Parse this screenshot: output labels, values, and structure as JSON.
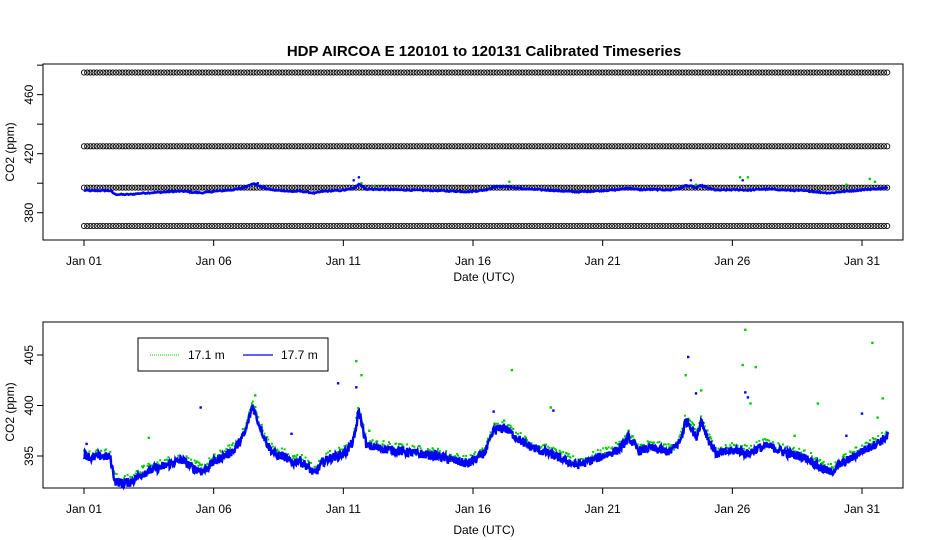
{
  "chart_data": [
    {
      "type": "scatter",
      "title": "HDP   AIRCOA  E   120101  to  120131   Calibrated Timeseries",
      "xlabel": "Date (UTC)",
      "ylabel": "CO2 (ppm)",
      "x_range_days": [
        1,
        32
      ],
      "ylim": [
        365,
        485
      ],
      "x_ticks": [
        {
          "day": 1,
          "label": "Jan 01"
        },
        {
          "day": 6,
          "label": "Jan 06"
        },
        {
          "day": 11,
          "label": "Jan 11"
        },
        {
          "day": 16,
          "label": "Jan 16"
        },
        {
          "day": 21,
          "label": "Jan 21"
        },
        {
          "day": 26,
          "label": "Jan 26"
        },
        {
          "day": 31,
          "label": "Jan 31"
        }
      ],
      "y_ticks": [
        380,
        420,
        460
      ],
      "y_ticks_unlabeled": [
        360,
        400,
        440,
        480
      ],
      "reference_levels": [
        371,
        397,
        425,
        475
      ],
      "series_colors": {
        "reference": "#000000",
        "low": "#00cc00",
        "high": "#0000ff"
      },
      "grid": false
    },
    {
      "type": "scatter",
      "title": "",
      "xlabel": "Date (UTC)",
      "ylabel": "CO2 (ppm)",
      "x_range_days": [
        1,
        32
      ],
      "ylim": [
        391,
        408
      ],
      "x_ticks": [
        {
          "day": 1,
          "label": "Jan 01"
        },
        {
          "day": 6,
          "label": "Jan 06"
        },
        {
          "day": 11,
          "label": "Jan 11"
        },
        {
          "day": 16,
          "label": "Jan 16"
        },
        {
          "day": 21,
          "label": "Jan 21"
        },
        {
          "day": 26,
          "label": "Jan 26"
        },
        {
          "day": 31,
          "label": "Jan 31"
        }
      ],
      "y_ticks": [
        395,
        400,
        405
      ],
      "legend_position": "top-left",
      "series": [
        {
          "name": "17.1 m",
          "color": "#00cc00"
        },
        {
          "name": "17.7 m",
          "color": "#0000ff"
        }
      ],
      "baseline": {
        "day": [
          1.0,
          1.3,
          1.6,
          2.0,
          2.2,
          2.5,
          2.8,
          3.2,
          3.6,
          4.0,
          4.4,
          4.8,
          5.2,
          5.6,
          6.0,
          6.4,
          6.8,
          7.2,
          7.5,
          7.7,
          7.9,
          8.1,
          8.4,
          8.7,
          9.0,
          9.3,
          9.6,
          9.9,
          10.2,
          10.5,
          10.8,
          11.1,
          11.4,
          11.6,
          11.9,
          12.3,
          12.8,
          13.4,
          14.0,
          14.6,
          15.2,
          15.8,
          16.2,
          16.5,
          16.8,
          17.2,
          17.6,
          18.0,
          18.5,
          19.0,
          19.5,
          20.0,
          20.4,
          20.8,
          21.2,
          21.6,
          22.0,
          22.4,
          22.8,
          23.2,
          23.6,
          24.0,
          24.2,
          24.4,
          24.6,
          24.8,
          25.1,
          25.4,
          25.8,
          26.2,
          26.6,
          27.0,
          27.4,
          27.8,
          28.2,
          28.6,
          29.0,
          29.4,
          29.8,
          30.2,
          30.6,
          31.0,
          31.4,
          31.8,
          32.0
        ],
        "co2": [
          395.2,
          394.8,
          395.0,
          394.9,
          392.5,
          392.3,
          392.4,
          393.2,
          393.6,
          393.9,
          394.3,
          394.6,
          393.8,
          393.5,
          394.4,
          395.0,
          395.6,
          397.2,
          400.0,
          398.5,
          397.2,
          396.0,
          395.1,
          395.0,
          394.3,
          394.6,
          394.0,
          393.2,
          394.4,
          394.8,
          395.0,
          395.4,
          396.5,
          399.5,
          396.0,
          395.8,
          395.6,
          395.4,
          395.2,
          395.0,
          394.6,
          394.2,
          394.8,
          395.5,
          397.5,
          397.8,
          397.0,
          396.2,
          395.6,
          395.2,
          394.6,
          394.1,
          394.4,
          394.8,
          395.2,
          395.6,
          396.8,
          395.5,
          395.8,
          395.6,
          395.4,
          396.5,
          398.5,
          398.0,
          396.8,
          398.5,
          396.5,
          395.2,
          395.4,
          395.6,
          395.2,
          395.8,
          396.0,
          395.6,
          395.2,
          395.0,
          394.6,
          393.8,
          393.4,
          394.2,
          394.8,
          395.5,
          396.0,
          396.6,
          397.0
        ]
      },
      "grid": false
    }
  ]
}
